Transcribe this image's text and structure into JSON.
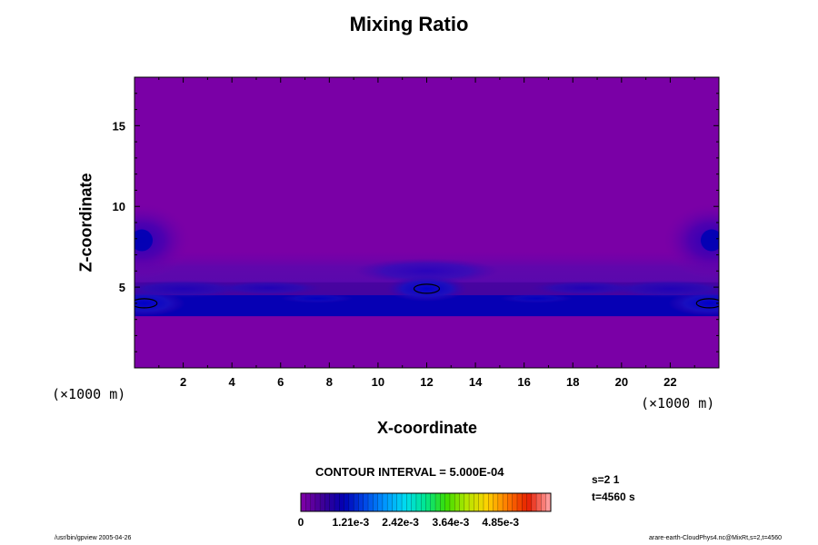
{
  "chart_data": {
    "type": "heatmap",
    "title": "Mixing Ratio",
    "xlabel": "X-coordinate",
    "ylabel": "Z-coordinate",
    "x_unit": "(×1000 m)",
    "z_unit": "(×1000 m)",
    "xlim": [
      0,
      24
    ],
    "ylim": [
      0,
      18
    ],
    "x_ticks": [
      2,
      4,
      6,
      8,
      10,
      12,
      14,
      16,
      18,
      20,
      22
    ],
    "y_ticks": [
      5,
      10,
      15
    ],
    "background_value": 0.0004,
    "layers": [
      {
        "feature": "low-level band",
        "x_range": [
          0,
          24
        ],
        "z_range": [
          3.2,
          4.5
        ],
        "value": 0.0012
      },
      {
        "feature": "band upper layer",
        "x_range": [
          0,
          24
        ],
        "z_range": [
          4.5,
          5.3
        ],
        "value": 0.0009
      }
    ],
    "features": [
      {
        "feature": "upper lobe left",
        "x": 0.3,
        "z": 7.9,
        "value": 0.0013
      },
      {
        "feature": "upper lobe right",
        "x": 23.7,
        "z": 7.9,
        "value": 0.0013
      },
      {
        "feature": "central maximum",
        "x": 12.0,
        "z": 4.9,
        "value": 0.0015
      },
      {
        "feature": "left maximum",
        "x": 0.4,
        "z": 4.0,
        "value": 0.0015
      },
      {
        "feature": "right maximum",
        "x": 23.6,
        "z": 4.0,
        "value": 0.0015
      }
    ],
    "contour_interval": "CONTOUR INTERVAL = 5.000E-04",
    "colorbar": {
      "min": 0,
      "max": 0.00607,
      "tick_labels": [
        "0",
        "1.21e-3",
        "2.42e-3",
        "3.64e-3",
        "4.85e-3"
      ],
      "tick_values": [
        0,
        0.00121,
        0.00242,
        0.00364,
        0.00485
      ],
      "colors": [
        "#7a00a6",
        "#3a0096",
        "#0000b4",
        "#0046e6",
        "#0096ff",
        "#00dcf0",
        "#00e68c",
        "#3cdc00",
        "#b4e600",
        "#ffd200",
        "#ff7800",
        "#e61e00",
        "#ff9a9a"
      ]
    }
  },
  "annotations": {
    "s": "s=2 1",
    "t": "t=4560 s",
    "footer_left": "/usr/bin/gpview 2005-04-26",
    "footer_right": "arare-earth-CloudPhys4.nc@MixRt,s=2,t=4560"
  }
}
